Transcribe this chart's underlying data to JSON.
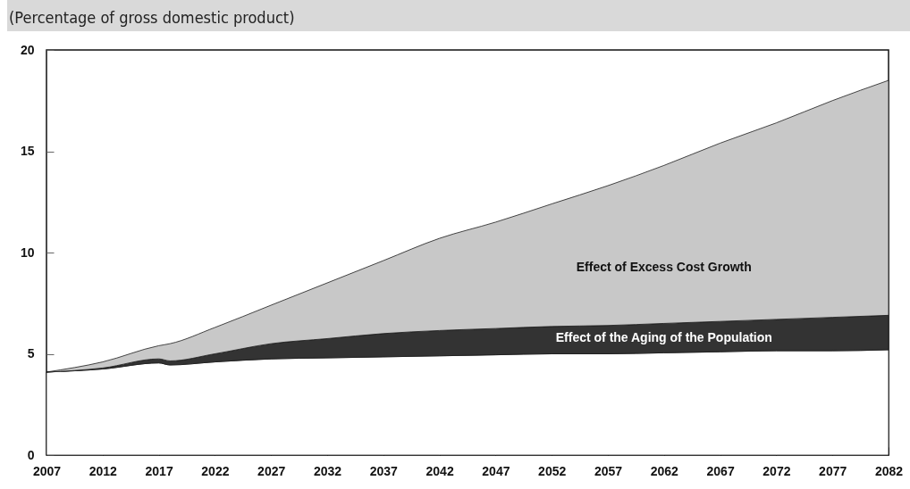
{
  "chart_data": {
    "type": "area",
    "ylabel": "(Percentage of gross domestic product)",
    "stacked": true,
    "x": [
      2007,
      2012,
      2017,
      2018,
      2022,
      2027,
      2032,
      2037,
      2042,
      2047,
      2052,
      2057,
      2062,
      2067,
      2072,
      2077,
      2082
    ],
    "series": [
      {
        "color": "#ffffff",
        "values": [
          4.1,
          4.25,
          4.55,
          4.45,
          4.6,
          4.75,
          4.8,
          4.85,
          4.9,
          4.95,
          5.0,
          5.0,
          5.05,
          5.1,
          5.15,
          5.15,
          5.2
        ]
      },
      {
        "name": "Effect of the Aging of the Population",
        "color": "#333333",
        "values": [
          0,
          0.05,
          0.2,
          0.2,
          0.4,
          0.75,
          0.95,
          1.15,
          1.25,
          1.3,
          1.35,
          1.4,
          1.45,
          1.5,
          1.55,
          1.65,
          1.7
        ]
      },
      {
        "name": "Effect of Excess Cost Growth",
        "color": "#c8c8c8",
        "values": [
          0,
          0.3,
          0.65,
          0.85,
          1.3,
          1.9,
          2.75,
          3.6,
          4.55,
          5.25,
          6.05,
          6.9,
          7.8,
          8.8,
          9.7,
          10.7,
          11.6
        ]
      }
    ],
    "xlim": [
      2007,
      2082
    ],
    "xticks": [
      2007,
      2012,
      2017,
      2022,
      2027,
      2032,
      2037,
      2042,
      2047,
      2052,
      2057,
      2062,
      2067,
      2072,
      2077,
      2082
    ],
    "ylim": [
      0,
      20
    ],
    "yticks": [
      0,
      5,
      10,
      15,
      20
    ],
    "grid": false,
    "legend": false
  }
}
